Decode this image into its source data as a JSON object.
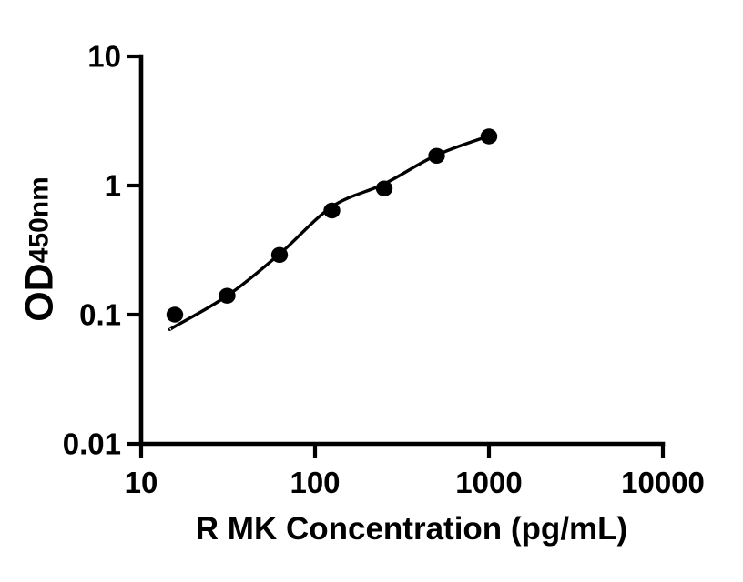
{
  "figure": {
    "background_color": "#ffffff",
    "ink_color": "#000000"
  },
  "chart_data": {
    "type": "scatter",
    "title": "",
    "xlabel": "R MK Concentration (pg/mL)",
    "ylabel_main": "OD",
    "ylabel_sub": "450nm",
    "x_scale": "log10",
    "y_scale": "log10",
    "xlim": [
      10,
      10000
    ],
    "ylim": [
      0.01,
      10
    ],
    "grid": false,
    "legend": false,
    "marker_color": "#000000",
    "line_color": "#000000",
    "x_ticks": {
      "values": [
        10,
        100,
        1000,
        10000
      ],
      "labels": [
        "10",
        "100",
        "1000",
        "10000"
      ]
    },
    "y_ticks": {
      "values": [
        10,
        1,
        0.1,
        0.01
      ],
      "labels": [
        "10",
        "1",
        "0.1",
        "0.01"
      ]
    },
    "series": [
      {
        "name": "standard-curve-points",
        "marker": "filled-circle",
        "points": [
          {
            "x": 15.625,
            "y": 0.1
          },
          {
            "x": 31.25,
            "y": 0.14
          },
          {
            "x": 62.5,
            "y": 0.29
          },
          {
            "x": 125,
            "y": 0.64
          },
          {
            "x": 250,
            "y": 0.95
          },
          {
            "x": 500,
            "y": 1.7
          },
          {
            "x": 1000,
            "y": 2.4
          }
        ]
      }
    ],
    "fit_curve": {
      "name": "standard-curve-fit",
      "points": [
        {
          "x": 14.9,
          "y": 0.078
        },
        {
          "x": 15.625,
          "y": 0.081
        },
        {
          "x": 31.25,
          "y": 0.14
        },
        {
          "x": 62.5,
          "y": 0.295
        },
        {
          "x": 125,
          "y": 0.685
        },
        {
          "x": 250,
          "y": 1.03
        },
        {
          "x": 500,
          "y": 1.72
        },
        {
          "x": 1000,
          "y": 2.42
        }
      ]
    }
  }
}
